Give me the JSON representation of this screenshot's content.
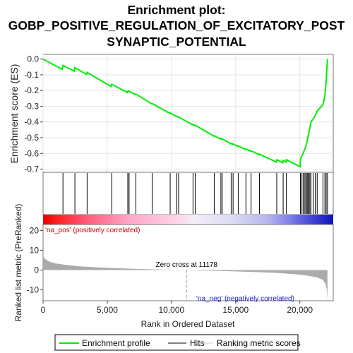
{
  "chart_data": {
    "type": "line",
    "title_lines": [
      "Enrichment plot:",
      "GOBP_POSITIVE_REGULATION_OF_EXCITATORY_POST",
      "SYNAPTIC_POTENTIAL"
    ],
    "xlabel": "Rank in Ordered Dataset",
    "ylabel_top": "Enrichment score (ES)",
    "ylabel_bottom": "Ranked list metric (PreRanked)",
    "xlim": [
      0,
      22600
    ],
    "x_ticks": [
      0,
      5000,
      10000,
      15000,
      20000
    ],
    "x_tick_labels": [
      "0",
      "5,000",
      "10,000",
      "15,000",
      "20,000"
    ],
    "es_ylim": [
      -0.72,
      0.03
    ],
    "es_ticks": [
      0.0,
      -0.1,
      -0.2,
      -0.3,
      -0.4,
      -0.5,
      -0.6,
      -0.7
    ],
    "es_tick_labels": [
      "0.0",
      "-0.1",
      "-0.2",
      "-0.3",
      "-0.4",
      "-0.5",
      "-0.6",
      "-0.7"
    ],
    "metric_ylim": [
      -15.5,
      23
    ],
    "metric_ticks": [
      20,
      10,
      0,
      -10
    ],
    "metric_tick_labels": [
      "20",
      "10",
      "0",
      "-10"
    ],
    "zero_cross_label": "Zero cross at 11178",
    "zero_cross": 11178,
    "pos_label": "'na_pos' (positively correlated)",
    "neg_label": "'na_neg' (negatively correlated)",
    "hits": [
      1550,
      2480,
      3430,
      5350,
      6600,
      6700,
      7230,
      8500,
      9900,
      10420,
      10560,
      11680,
      11850,
      13330,
      13850,
      13950,
      14650,
      14800,
      15200,
      15800,
      16200,
      16850,
      18200,
      18700,
      18950,
      20050,
      20100,
      20250,
      20350,
      20450,
      20550,
      20620,
      20700,
      20780,
      20860,
      21050,
      21200,
      21350,
      21800,
      21950,
      22050,
      22150
    ],
    "es_curve": {
      "x": [
        0,
        1500,
        1550,
        2450,
        2480,
        3400,
        3430,
        5300,
        5350,
        6550,
        6600,
        6650,
        6700,
        7200,
        7230,
        8470,
        8500,
        9870,
        9900,
        10400,
        10420,
        10550,
        10560,
        11650,
        11680,
        11820,
        11850,
        13300,
        13330,
        13820,
        13850,
        13920,
        13950,
        14620,
        14650,
        14770,
        14800,
        15170,
        15200,
        15770,
        15800,
        16170,
        16200,
        16820,
        16850,
        18170,
        18200,
        18670,
        18700,
        18920,
        18950,
        20020,
        20050,
        20100,
        20250,
        20350,
        20450,
        20550,
        20620,
        20700,
        20780,
        20860,
        21050,
        21200,
        21350,
        21800,
        21950,
        22050,
        22150
      ],
      "y": [
        0.0,
        -0.065,
        -0.04,
        -0.078,
        -0.055,
        -0.098,
        -0.085,
        -0.175,
        -0.16,
        -0.212,
        -0.205,
        -0.208,
        -0.204,
        -0.225,
        -0.223,
        -0.285,
        -0.283,
        -0.345,
        -0.343,
        -0.365,
        -0.364,
        -0.37,
        -0.369,
        -0.418,
        -0.416,
        -0.423,
        -0.421,
        -0.49,
        -0.488,
        -0.508,
        -0.506,
        -0.51,
        -0.508,
        -0.538,
        -0.536,
        -0.542,
        -0.54,
        -0.555,
        -0.553,
        -0.575,
        -0.572,
        -0.586,
        -0.583,
        -0.608,
        -0.605,
        -0.655,
        -0.64,
        -0.66,
        -0.645,
        -0.655,
        -0.64,
        -0.685,
        -0.64,
        -0.625,
        -0.6,
        -0.58,
        -0.56,
        -0.53,
        -0.5,
        -0.47,
        -0.44,
        -0.4,
        -0.38,
        -0.36,
        -0.33,
        -0.29,
        -0.23,
        -0.14,
        0.0
      ]
    },
    "metric_curve": {
      "x": [
        0,
        100,
        500,
        1000,
        2000,
        3000,
        5000,
        7000,
        9000,
        10500,
        11178,
        12500,
        14000,
        16000,
        18000,
        19500,
        20500,
        21300,
        21800,
        22000,
        22100,
        22150
      ],
      "y": [
        7.5,
        5.8,
        4.2,
        3.3,
        2.4,
        1.8,
        1.1,
        0.6,
        0.25,
        0.05,
        0.0,
        -0.25,
        -0.5,
        -0.9,
        -1.4,
        -2.0,
        -2.7,
        -3.6,
        -5.0,
        -7.0,
        -10.0,
        -15.2
      ]
    },
    "legend": [
      "Enrichment profile",
      "Hits",
      "Ranking metric scores"
    ],
    "colors": {
      "enrichment": "#00ee00",
      "hits": "#000000",
      "metric": "#aaaaaa",
      "zero_line": "#999999",
      "pos_label": "#cc0000",
      "neg_label": "#1a1acc"
    }
  }
}
